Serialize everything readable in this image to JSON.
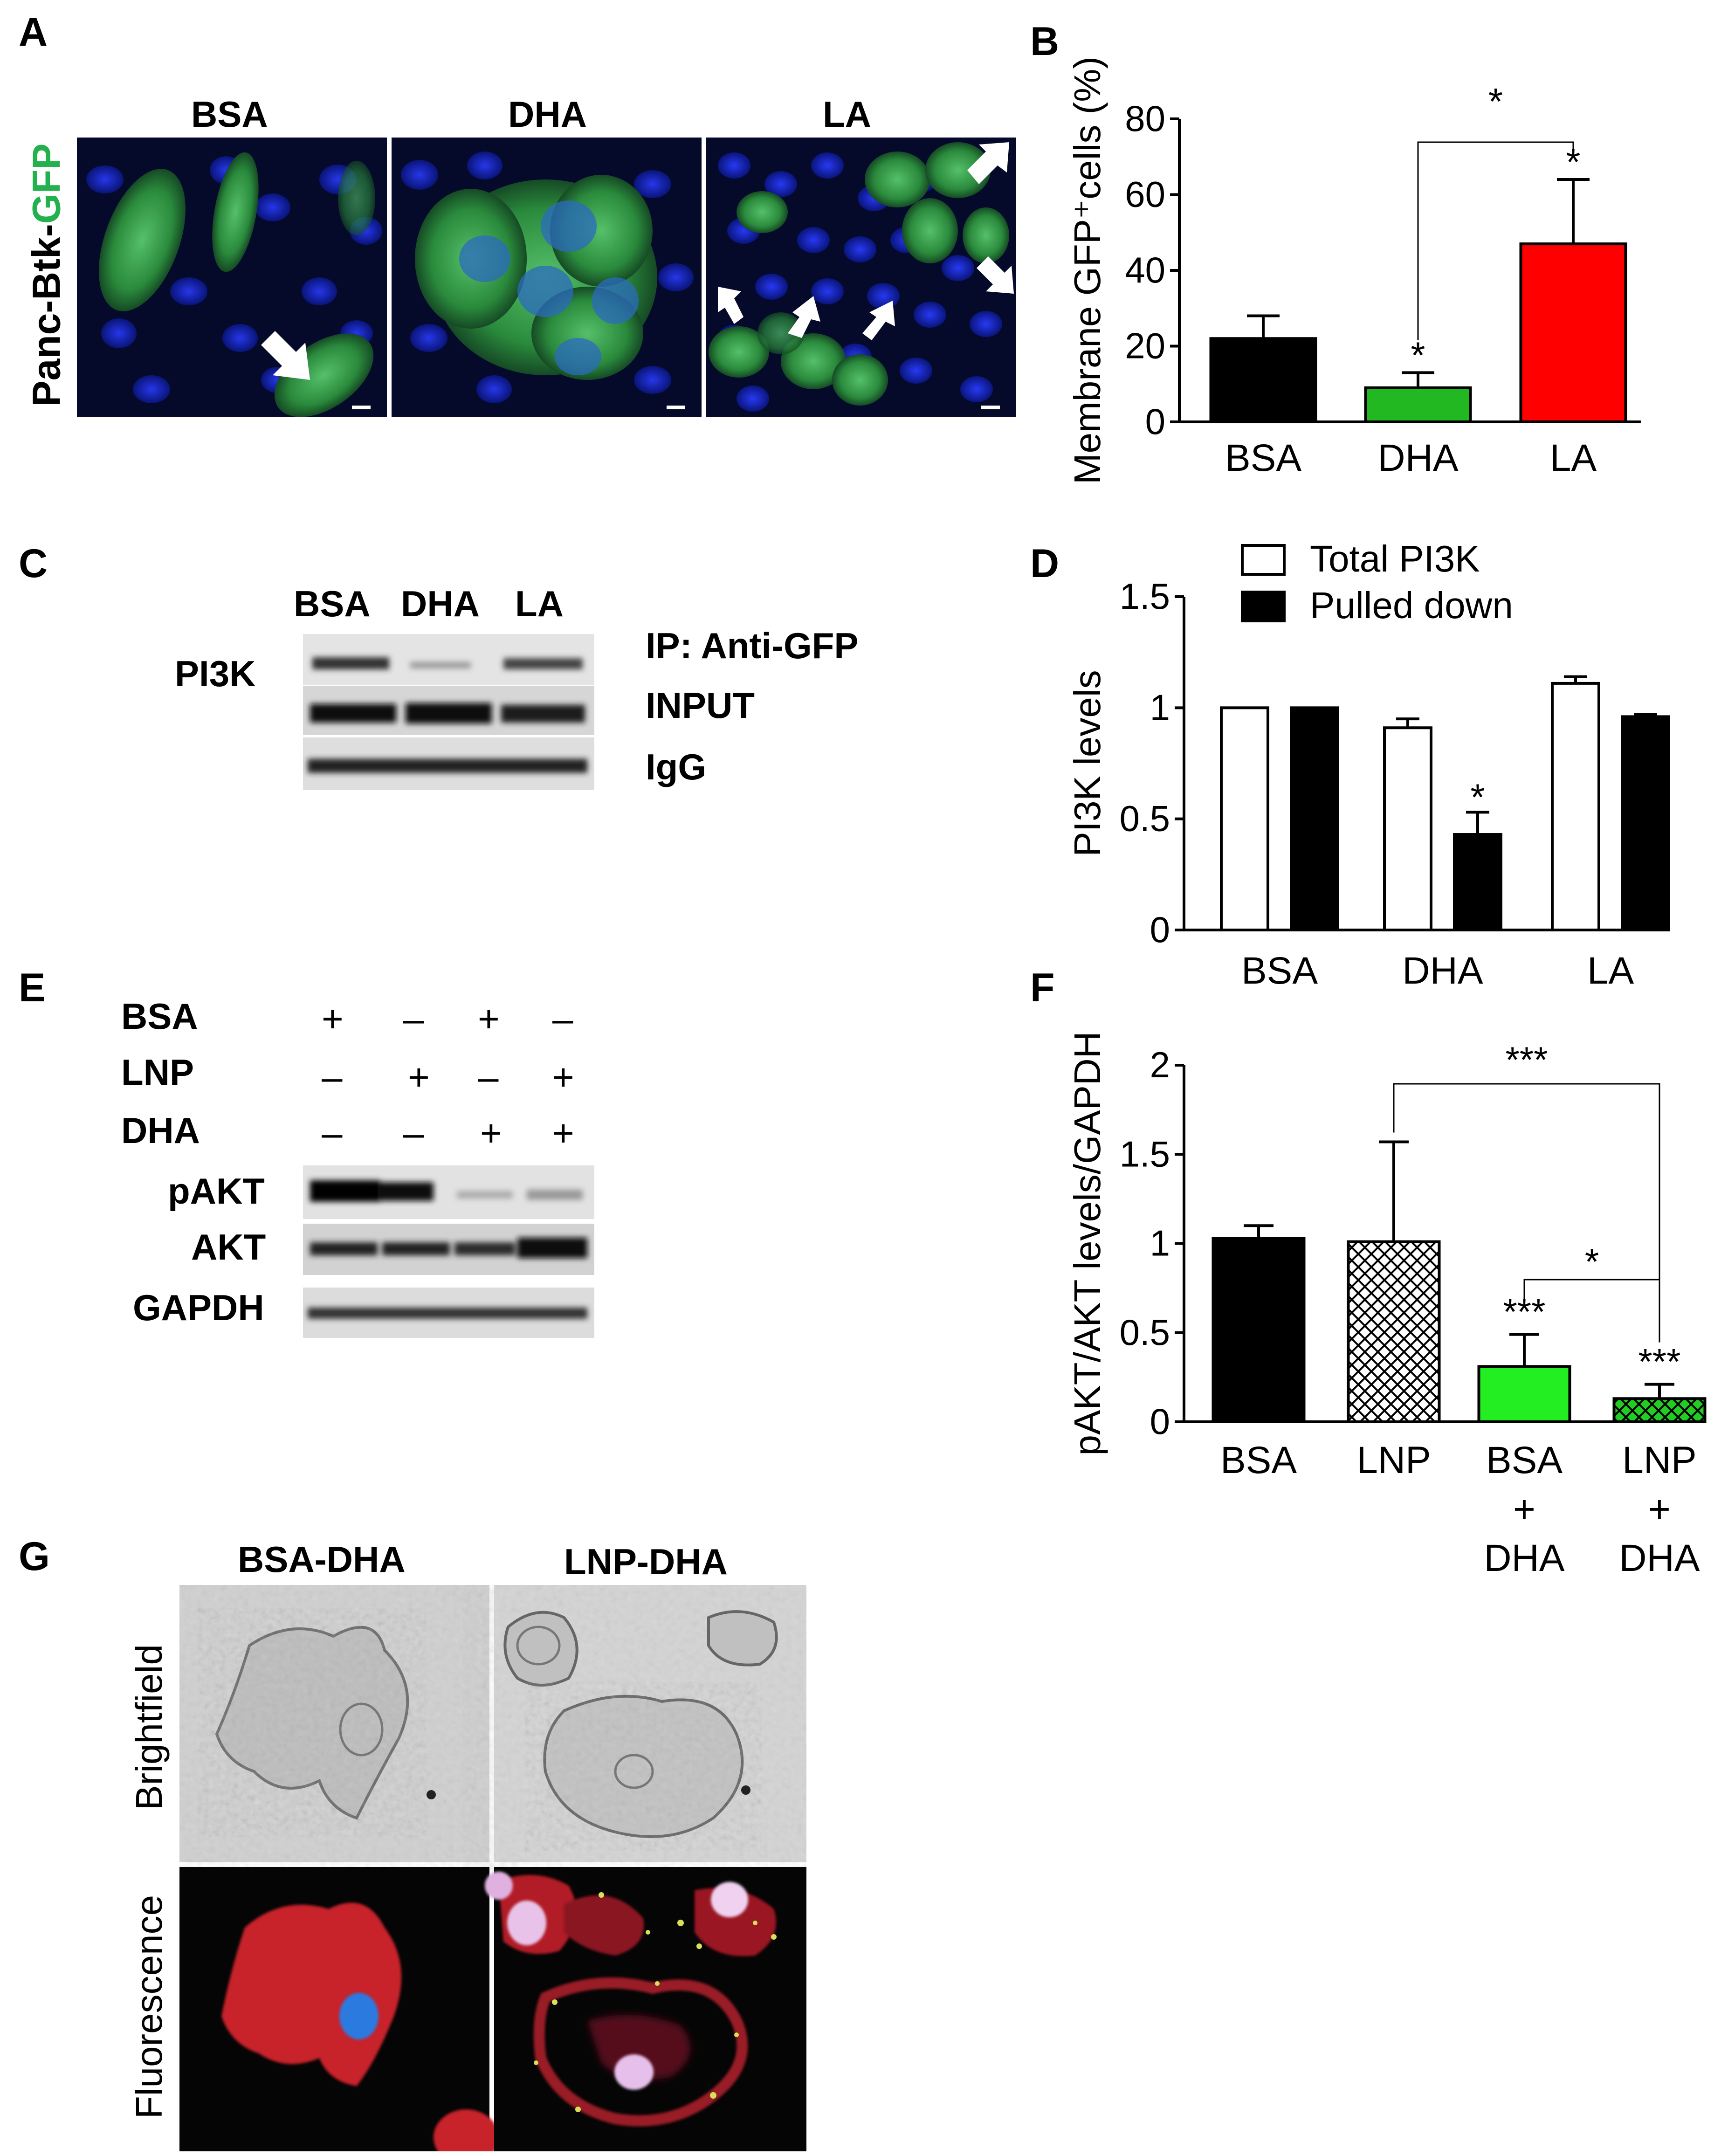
{
  "panels": {
    "A": {
      "letter": "A",
      "side_label_prefix": "Panc-Btk-",
      "side_label_gfp": "GFP",
      "labels": [
        "BSA",
        "DHA",
        "LA"
      ]
    },
    "B": {
      "letter": "B"
    },
    "C": {
      "letter": "C",
      "lanes": [
        "BSA",
        "DHA",
        "LA"
      ],
      "protein": "PI3K",
      "rows": [
        "IP: Anti-GFP",
        "INPUT",
        "IgG"
      ]
    },
    "D": {
      "letter": "D"
    },
    "E": {
      "letter": "E",
      "conditions": [
        {
          "name": "BSA",
          "signs": [
            "+",
            "–",
            "+",
            "–"
          ]
        },
        {
          "name": "LNP",
          "signs": [
            "–",
            "+",
            "–",
            "+"
          ]
        },
        {
          "name": "DHA",
          "signs": [
            "–",
            "–",
            "+",
            "+"
          ]
        }
      ],
      "blots": [
        "pAKT",
        "AKT",
        "GAPDH"
      ]
    },
    "F": {
      "letter": "F"
    },
    "G": {
      "letter": "G",
      "columns": [
        "BSA-DHA",
        "LNP-DHA"
      ],
      "rows": [
        "Brightfield",
        "Fluorescence"
      ]
    }
  },
  "chart_data": [
    {
      "panel": "B",
      "type": "bar",
      "categories": [
        "BSA",
        "DHA",
        "LA"
      ],
      "values": [
        22,
        9,
        47
      ],
      "errors": [
        6,
        4,
        17
      ],
      "colors": [
        "#000000",
        "#22b822",
        "#ff0000"
      ],
      "ylabel": "Membrane GFP⁺cells (%)",
      "ylim": [
        0,
        80
      ],
      "yticks": [
        "0",
        "20",
        "40",
        "60",
        "80"
      ],
      "annotations": {
        "stars": [
          "",
          "*",
          "*"
        ],
        "bracket_label": "*"
      }
    },
    {
      "panel": "D",
      "type": "bar",
      "categories": [
        "BSA",
        "DHA",
        "LA"
      ],
      "series": [
        {
          "name": "Total PI3K",
          "values": [
            1.0,
            0.91,
            1.11
          ],
          "errors": [
            0,
            0.04,
            0.03
          ],
          "fill": "#ffffff"
        },
        {
          "name": "Pulled down",
          "values": [
            1.0,
            0.43,
            0.96
          ],
          "errors": [
            0,
            0.1,
            0.01
          ],
          "fill": "#000000"
        }
      ],
      "ylabel": "PI3K levels",
      "ylim": [
        0,
        1.5
      ],
      "yticks": [
        "0",
        "0.5",
        "1",
        "1.5"
      ],
      "annotations": {
        "stars": [
          "",
          "*",
          ""
        ]
      }
    },
    {
      "panel": "F",
      "type": "bar",
      "categories": [
        "BSA",
        "LNP",
        "BSA\n+\nDHA",
        "LNP\n+\nDHA"
      ],
      "category_lines": [
        [
          "BSA"
        ],
        [
          "LNP"
        ],
        [
          "BSA",
          "+",
          "DHA"
        ],
        [
          "LNP",
          "+",
          "DHA"
        ]
      ],
      "values": [
        1.03,
        1.01,
        0.31,
        0.13
      ],
      "errors": [
        0.07,
        0.56,
        0.18,
        0.08
      ],
      "colors": [
        "#000000",
        "#ffffff",
        "#22ee22",
        "#22cc22"
      ],
      "ylabel": "pAKT/AKT levels/GAPDH",
      "ylim": [
        0,
        2
      ],
      "yticks": [
        "0",
        "0.5",
        "1",
        "1.5",
        "2"
      ],
      "annotations": {
        "stars": [
          "",
          "",
          "***",
          "***"
        ],
        "bracket_top": "***",
        "bracket_mid": "*"
      }
    }
  ]
}
